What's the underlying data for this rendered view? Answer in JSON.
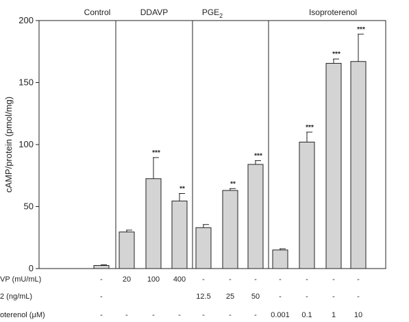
{
  "chart_data": {
    "type": "bar",
    "ylabel": "cAMP/protein (pmol/mg)",
    "ylim": [
      0,
      200
    ],
    "yticks": [
      0,
      50,
      100,
      150,
      200
    ],
    "grid": false,
    "bar_color": "#d4d4d4",
    "groups": [
      {
        "label": "Control",
        "bar_count": 1
      },
      {
        "label_main": "PGE",
        "label_sub": "2",
        "bar_count": 3
      },
      {
        "label": "DDAVP",
        "bar_count": 3
      },
      {
        "label": "Isoproterenol",
        "bar_count": 4
      }
    ],
    "group_order": [
      0,
      2,
      1,
      3
    ],
    "bars": [
      {
        "value": 2.5,
        "error": 0.5,
        "sig": ""
      },
      {
        "value": 29.5,
        "error": 1.5,
        "sig": ""
      },
      {
        "value": 72.5,
        "error": 17.0,
        "sig": "***"
      },
      {
        "value": 54.5,
        "error": 6.0,
        "sig": "**"
      },
      {
        "value": 33.0,
        "error": 2.5,
        "sig": ""
      },
      {
        "value": 63.0,
        "error": 1.5,
        "sig": "**"
      },
      {
        "value": 84.0,
        "error": 3.0,
        "sig": "***"
      },
      {
        "value": 15.0,
        "error": 1.0,
        "sig": ""
      },
      {
        "value": 102.0,
        "error": 8.0,
        "sig": "***"
      },
      {
        "value": 165.5,
        "error": 3.5,
        "sig": "***"
      },
      {
        "value": 167.0,
        "error": 22.0,
        "sig": "***"
      }
    ],
    "dose_rows": [
      {
        "label_main": "VP (mU/mL)",
        "label_sub": "",
        "values": [
          "-",
          "20",
          "100",
          "400",
          "-",
          "-",
          "-",
          "-",
          "-",
          "-",
          "-"
        ]
      },
      {
        "label_main": "2 (ng/mL)",
        "label_sub": "",
        "values": [
          "-",
          "",
          "",
          "",
          "12.5",
          "25",
          "50",
          "-",
          "-",
          "-",
          "-"
        ]
      },
      {
        "label_main": "oterenol (",
        "label_mu": "μ",
        "label_tail": "M)",
        "values": [
          "-",
          "-",
          "-",
          "-",
          "-",
          "-",
          "-",
          "0.001",
          "0.1",
          "1",
          "10"
        ]
      }
    ]
  }
}
